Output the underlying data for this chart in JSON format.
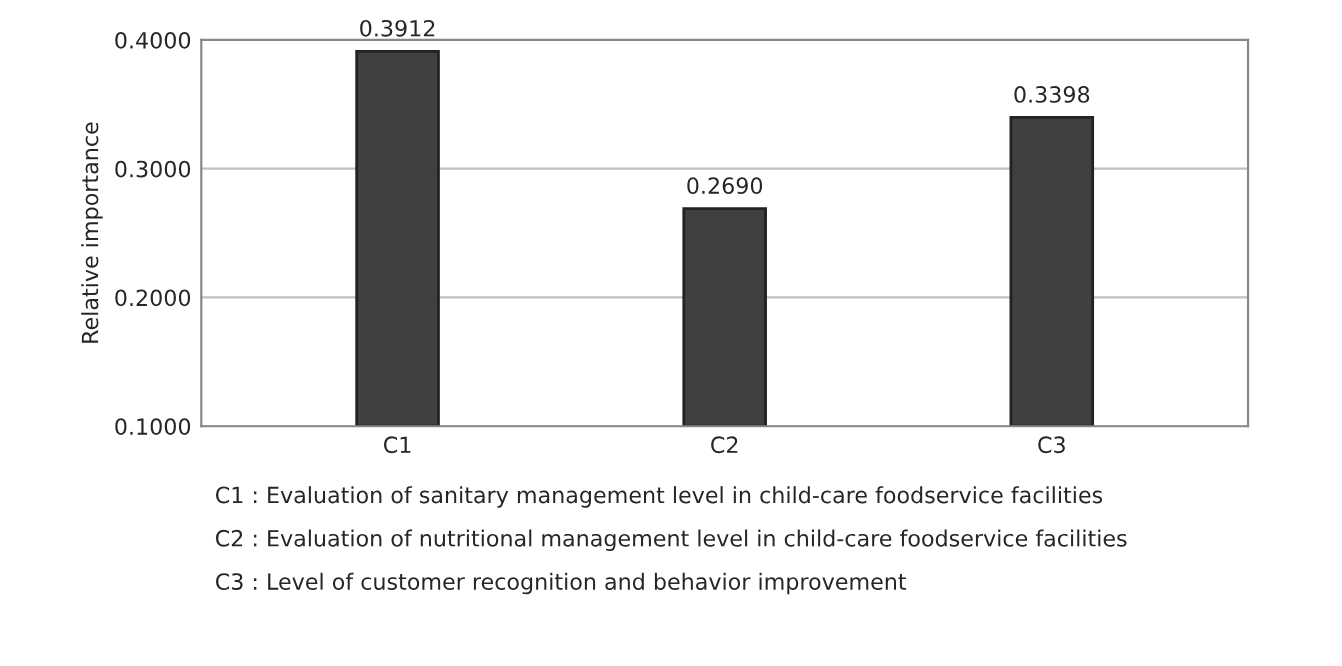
{
  "chart_data": {
    "type": "bar",
    "ylabel": "Relative importance",
    "categories": [
      "C1",
      "C2",
      "C3"
    ],
    "series": [
      {
        "color": "#404040",
        "values": [
          0.3912,
          0.269,
          0.3398
        ],
        "value_labels": [
          "0.3912",
          "0.2690",
          "0.3398"
        ]
      }
    ],
    "ylim": [
      0.1,
      0.4
    ],
    "yticks": [
      {
        "value": 0.1,
        "label": "0.1000"
      },
      {
        "value": 0.2,
        "label": "0.2000"
      },
      {
        "value": 0.3,
        "label": "0.3000"
      },
      {
        "value": 0.4,
        "label": "0.4000"
      }
    ],
    "grid": "y",
    "annotations": [
      "C1 : Evaluation of sanitary management level in child-care foodservice facilities",
      "C2 : Evaluation of nutritional management level in child-care foodservice facilities",
      "C3 : Level of customer recognition and behavior improvement"
    ]
  }
}
